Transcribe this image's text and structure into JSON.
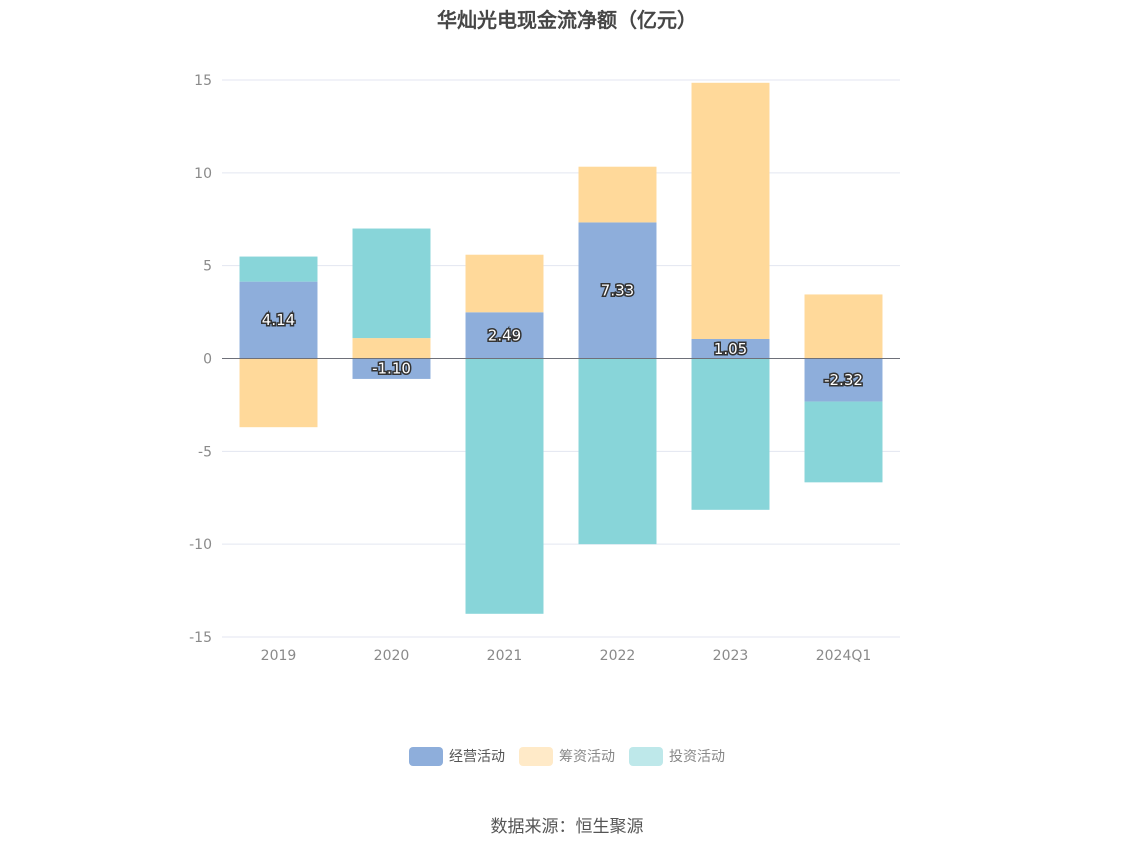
{
  "title": "华灿光电现金流净额（亿元）",
  "source": "数据来源：恒生聚源",
  "chart_data": {
    "type": "bar",
    "stacked": true,
    "categories": [
      "2019",
      "2020",
      "2021",
      "2022",
      "2023",
      "2024Q1"
    ],
    "ylim": [
      -15,
      15
    ],
    "yticks": [
      15,
      10,
      5,
      0,
      -5,
      -10,
      -15
    ],
    "grid": true,
    "legend_position": "bottom",
    "series": [
      {
        "name": "经营活动",
        "color": "#8eaedb",
        "values": [
          4.14,
          -1.1,
          2.49,
          7.33,
          1.05,
          -2.32
        ],
        "labels": [
          "4.14",
          "-1.10",
          "2.49",
          "7.33",
          "1.05",
          "-2.32"
        ]
      },
      {
        "name": "筹资活动",
        "color": "#ffd99a",
        "values": [
          -3.7,
          1.1,
          3.1,
          3.0,
          13.8,
          3.45
        ]
      },
      {
        "name": "投资活动",
        "color": "#88d5d9",
        "values": [
          1.35,
          5.9,
          -13.75,
          -10.0,
          -8.15,
          -4.35
        ]
      }
    ]
  }
}
